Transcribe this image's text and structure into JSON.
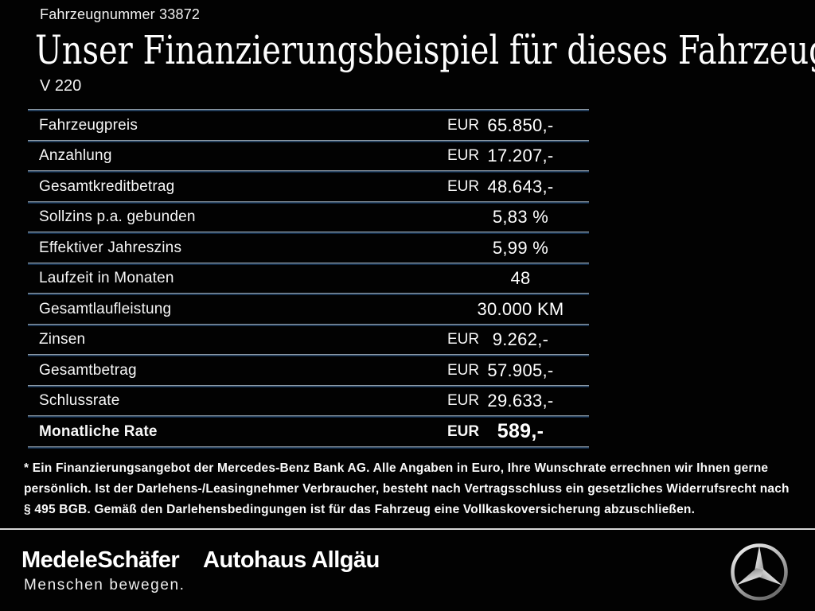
{
  "header": {
    "vehicle_number": "Fahrzeugnummer 33872",
    "title": "Unser Finanzierungsbeispiel für dieses Fahrzeug.*",
    "model": "V 220"
  },
  "table": {
    "rows": [
      {
        "label": "Fahrzeugpreis",
        "currency": "EUR",
        "value": "65.850,-",
        "bold": false
      },
      {
        "label": "Anzahlung",
        "currency": "EUR",
        "value": "17.207,-",
        "bold": false
      },
      {
        "label": "Gesamtkreditbetrag",
        "currency": "EUR",
        "value": "48.643,-",
        "bold": false
      },
      {
        "label": "Sollzins p.a. gebunden",
        "currency": "",
        "value": "5,83 %",
        "bold": false
      },
      {
        "label": "Effektiver Jahreszins",
        "currency": "",
        "value": "5,99 %",
        "bold": false
      },
      {
        "label": "Laufzeit in Monaten",
        "currency": "",
        "value": "48",
        "bold": false
      },
      {
        "label": "Gesamtlaufleistung",
        "currency": "",
        "value": "30.000 KM",
        "bold": false
      },
      {
        "label": "Zinsen",
        "currency": "EUR",
        "value": "9.262,-",
        "bold": false
      },
      {
        "label": "Gesamtbetrag",
        "currency": "EUR",
        "value": "57.905,-",
        "bold": false
      },
      {
        "label": "Schlussrate",
        "currency": "EUR",
        "value": "29.633,-",
        "bold": false
      },
      {
        "label": "Monatliche Rate",
        "currency": "EUR",
        "value": "589,-",
        "bold": true
      }
    ]
  },
  "footnote": {
    "lines": [
      "* Ein Finanzierungsangebot der Mercedes-Benz Bank AG. Alle Angaben in Euro, Ihre Wunschrate errechnen wir Ihnen gerne",
      "persönlich. Ist der Darlehens-/Leasingnehmer Verbraucher, besteht nach Vertragsschluss ein gesetzliches Widerrufsrecht nach",
      "§ 495 BGB. Gemäß den Darlehensbedingungen ist für das Fahrzeug eine Vollkaskoversicherung abzuschließen."
    ]
  },
  "footer": {
    "dealer1_name": "MedeleSchäfer",
    "dealer1_tagline": "Menschen bewegen.",
    "dealer2_name": "Autohaus Allgäu",
    "brand_logo": "mercedes-star-icon"
  },
  "colors": {
    "background": "#000000",
    "text": "#ffffff",
    "separator_top_gray": "#8d99a4",
    "separator_blue": "#142e4d",
    "footer_line": "#d6d6d6",
    "star_silver_light": "#f2f2f2",
    "star_silver_dark": "#7d7d7d"
  }
}
